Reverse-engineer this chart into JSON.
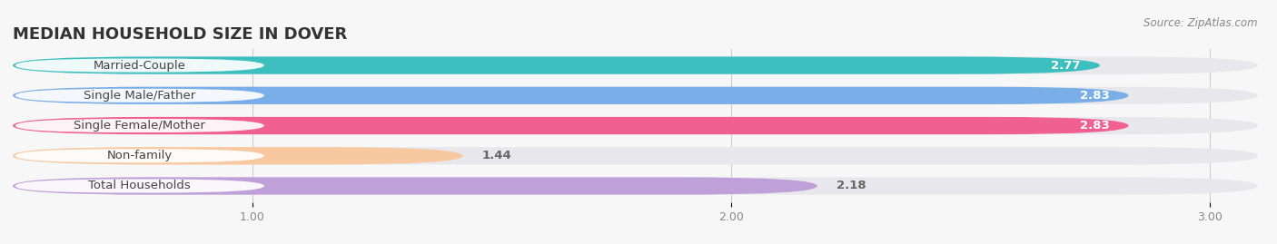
{
  "title": "MEDIAN HOUSEHOLD SIZE IN DOVER",
  "source": "Source: ZipAtlas.com",
  "categories": [
    "Married-Couple",
    "Single Male/Father",
    "Single Female/Mother",
    "Non-family",
    "Total Households"
  ],
  "values": [
    2.77,
    2.83,
    2.83,
    1.44,
    2.18
  ],
  "colors": [
    "#3dbfbf",
    "#7aaee8",
    "#f06090",
    "#f8c8a0",
    "#c0a0d8"
  ],
  "bar_bg_color": "#e8e8ec",
  "xlim_data": [
    0.5,
    3.1
  ],
  "xmin": 0.5,
  "xmax": 3.1,
  "xticks": [
    1.0,
    2.0,
    3.0
  ],
  "xtick_labels": [
    "1.00",
    "2.00",
    "3.00"
  ],
  "value_label_color_inside": "#ffffff",
  "value_label_color_outside": "#666666",
  "title_fontsize": 13,
  "label_fontsize": 9.5,
  "tick_fontsize": 9,
  "source_fontsize": 8.5,
  "bar_height": 0.58,
  "background_color": "#f7f7f7",
  "inside_threshold": 2.5
}
